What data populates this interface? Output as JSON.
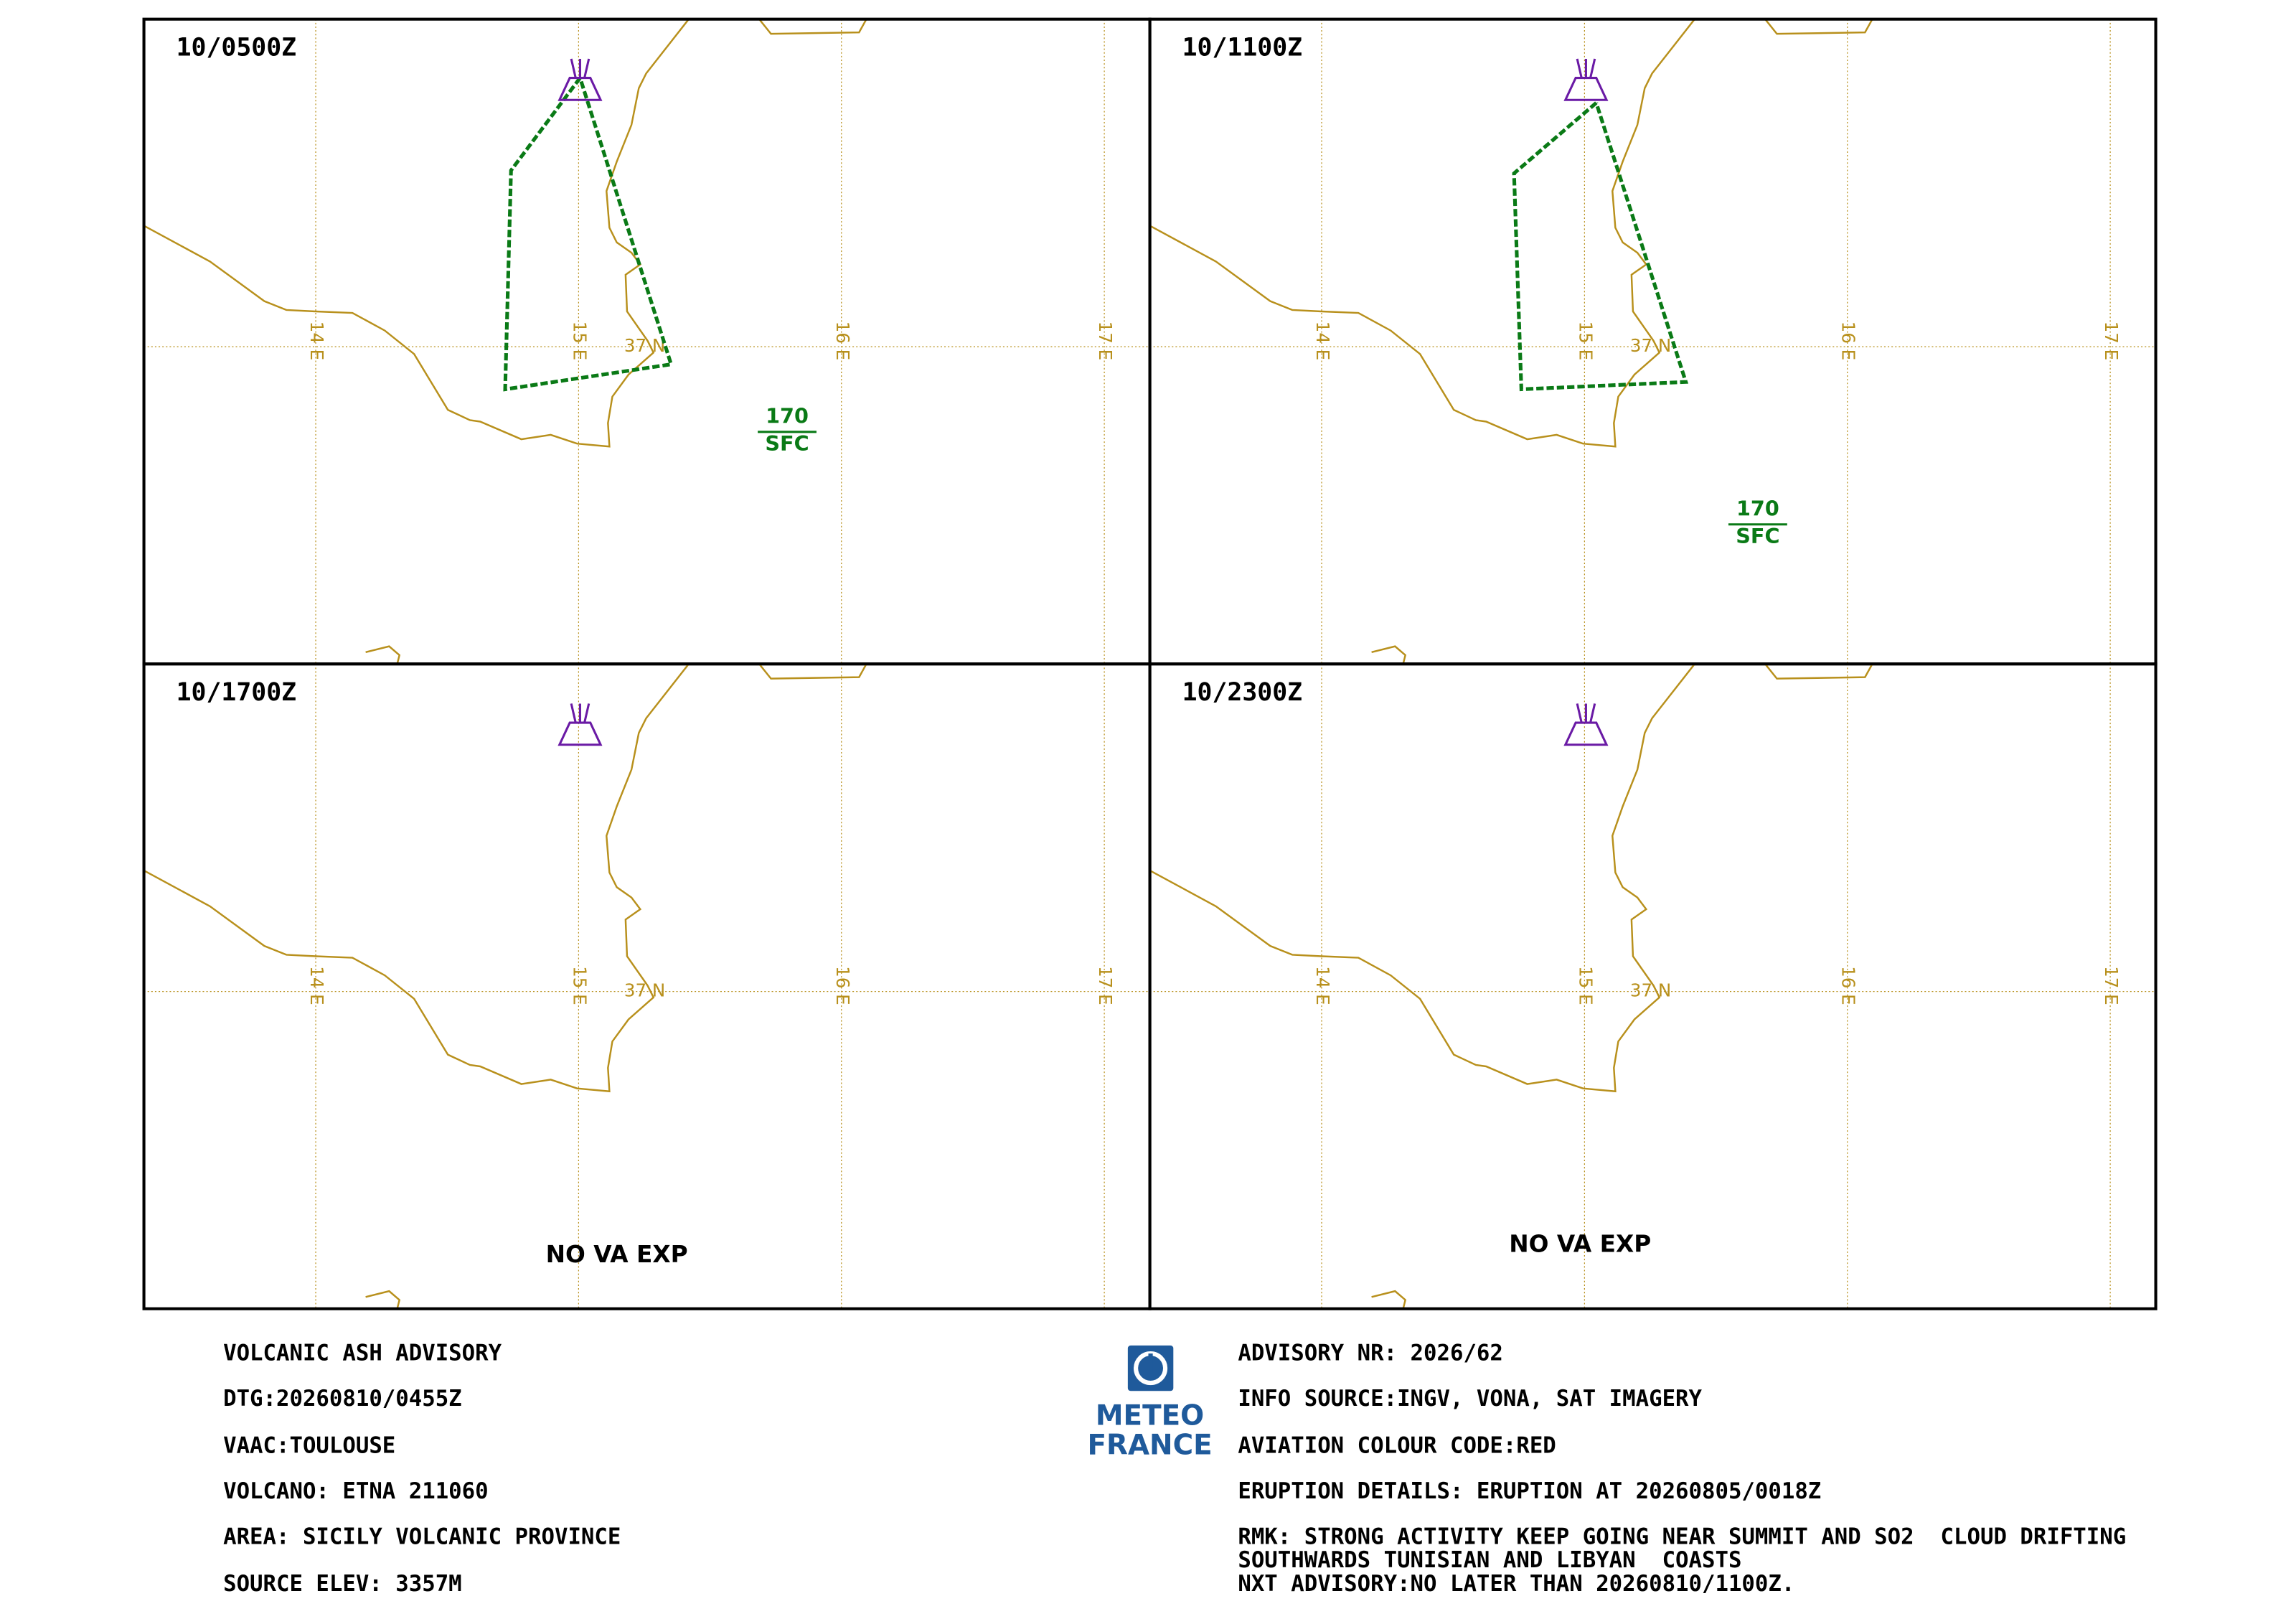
{
  "panels": [
    {
      "time": "10/0500Z",
      "top": "170",
      "bottom": "SFC"
    },
    {
      "time": "10/1100Z",
      "top": "170",
      "bottom": "SFC"
    },
    {
      "time": "10/1700Z",
      "note": "NO VA EXP"
    },
    {
      "time": "10/2300Z",
      "note": "NO VA EXP"
    }
  ],
  "grid_labels": {
    "lon": [
      "14 E",
      "15 E",
      "16 E",
      "17 E"
    ],
    "lat": "37 N"
  },
  "advisory": {
    "left": [
      "VOLCANIC ASH ADVISORY",
      "DTG:20260810/0455Z",
      "VAAC:TOULOUSE",
      "VOLCANO: ETNA 211060",
      "AREA: SICILY VOLCANIC PROVINCE",
      "SOURCE ELEV: 3357M"
    ],
    "right": [
      "ADVISORY NR: 2026/62",
      "INFO SOURCE:INGV, VONA, SAT IMAGERY",
      "AVIATION COLOUR CODE:RED",
      "ERUPTION DETAILS: ERUPTION AT 20260805/0018Z",
      "RMK: STRONG ACTIVITY KEEP GOING NEAR SUMMIT AND SO2  CLOUD DRIFTING",
      "SOUTHWARDS TUNISIAN AND LIBYAN  COASTS",
      "NXT ADVISORY:NO LATER THAN 20260810/1100Z."
    ]
  },
  "logo": [
    "METEO",
    "FRANCE"
  ]
}
